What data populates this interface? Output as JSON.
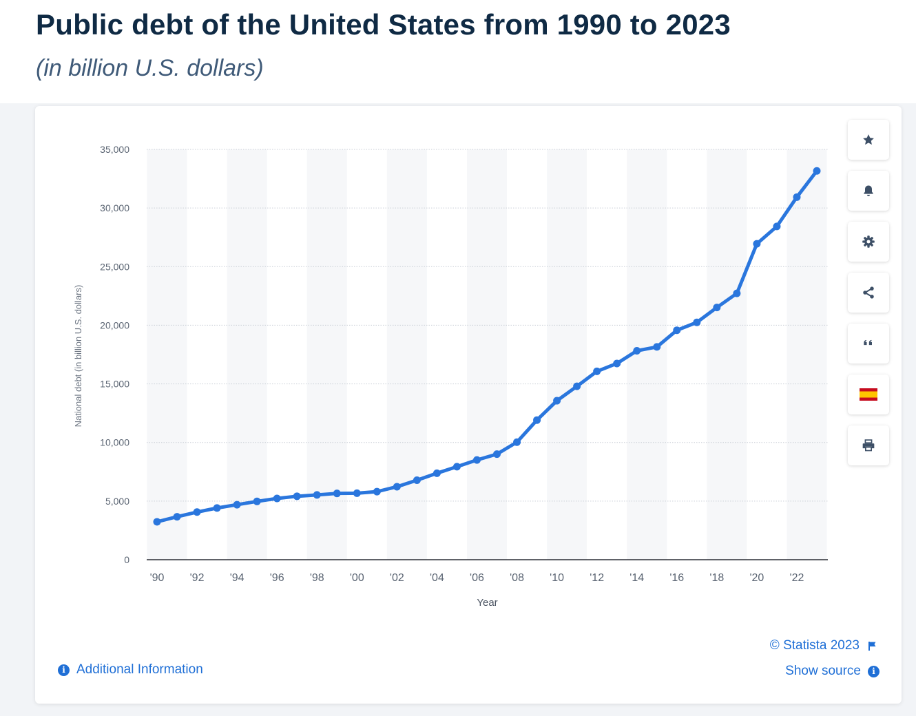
{
  "title": "Public debt of the United States from 1990 to 2023",
  "subtitle": "(in billion U.S. dollars)",
  "colors": {
    "line": "#2a76dd",
    "band": "#f6f7f9",
    "accent": "#1f6fd6",
    "title": "#0f2a44"
  },
  "toolbar": {
    "icons": [
      "star-icon",
      "bell-icon",
      "gear-icon",
      "share-icon",
      "quote-icon",
      "spain-flag-icon",
      "print-icon"
    ]
  },
  "footer": {
    "additional_info": "Additional Information",
    "copyright": "© Statista 2023",
    "show_source": "Show source"
  },
  "chart_data": {
    "type": "line",
    "title": "",
    "xlabel": "Year",
    "ylabel": "National debt (in billion U.S. dollars)",
    "ylim": [
      0,
      35000
    ],
    "yticks": [
      0,
      5000,
      10000,
      15000,
      20000,
      25000,
      30000,
      35000
    ],
    "ytick_labels": [
      "0",
      "5,000",
      "10,000",
      "15,000",
      "20,000",
      "25,000",
      "30,000",
      "35,000"
    ],
    "xtick_labels": [
      "'90",
      "'92",
      "'94",
      "'96",
      "'98",
      "'00",
      "'02",
      "'04",
      "'06",
      "'08",
      "'10",
      "'12",
      "'14",
      "'16",
      "'18",
      "'20",
      "'22"
    ],
    "grid": true,
    "series": [
      {
        "x": [
          1990,
          1991,
          1992,
          1993,
          1994,
          1995,
          1996,
          1997,
          1998,
          1999,
          2000,
          2001,
          2002,
          2003,
          2004,
          2005,
          2006,
          2007,
          2008,
          2009,
          2010,
          2011,
          2012,
          2013,
          2014,
          2015,
          2016,
          2017,
          2018,
          2019,
          2020,
          2021,
          2022,
          2023
        ],
        "values": [
          3233,
          3665,
          4065,
          4411,
          4693,
          4974,
          5225,
          5413,
          5526,
          5656,
          5674,
          5807,
          6228,
          6783,
          7379,
          7933,
          8507,
          9008,
          10025,
          11910,
          13562,
          14790,
          16066,
          16738,
          17824,
          18151,
          19573,
          20245,
          21516,
          22719,
          26945,
          28429,
          30929,
          33167
        ]
      }
    ]
  }
}
